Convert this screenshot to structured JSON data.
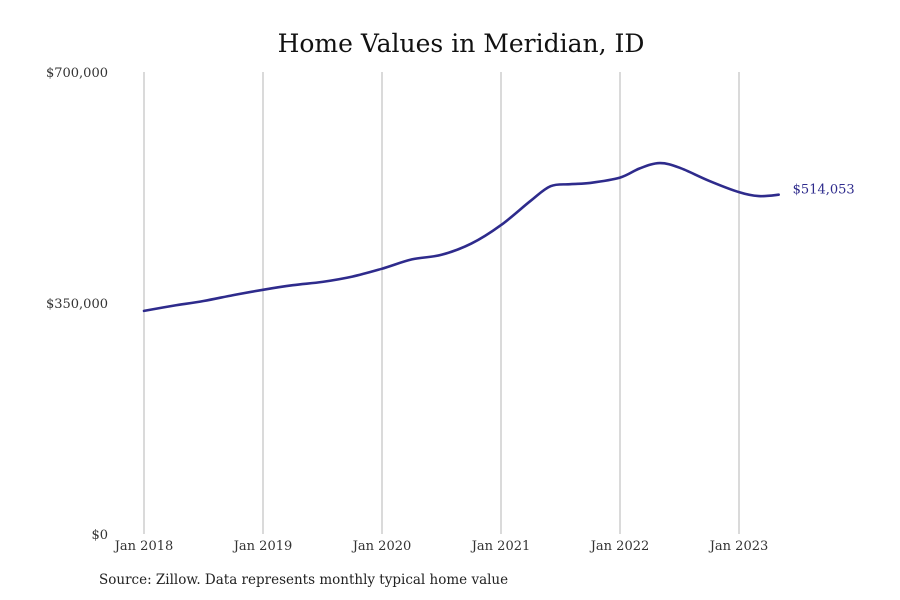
{
  "chart_data": {
    "type": "line",
    "title": "Home Values in Meridian, ID",
    "xlabel": "",
    "ylabel": "",
    "ylim": [
      0,
      700000
    ],
    "yticks": [
      {
        "value": 0,
        "label": "$0"
      },
      {
        "value": 350000,
        "label": "$350,000"
      },
      {
        "value": 700000,
        "label": "$700,000"
      }
    ],
    "xticks": [
      {
        "value": "2018-01",
        "label": "Jan 2018"
      },
      {
        "value": "2019-01",
        "label": "Jan 2019"
      },
      {
        "value": "2020-01",
        "label": "Jan 2020"
      },
      {
        "value": "2021-01",
        "label": "Jan 2021"
      },
      {
        "value": "2022-01",
        "label": "Jan 2022"
      },
      {
        "value": "2023-01",
        "label": "Jan 2023"
      }
    ],
    "grid": "vertical",
    "series": [
      {
        "color": "#2e2b8c",
        "points": [
          {
            "x": "2018-01",
            "y": 338000
          },
          {
            "x": "2018-04",
            "y": 346000
          },
          {
            "x": "2018-07",
            "y": 353000
          },
          {
            "x": "2018-10",
            "y": 362000
          },
          {
            "x": "2019-01",
            "y": 370000
          },
          {
            "x": "2019-04",
            "y": 377000
          },
          {
            "x": "2019-07",
            "y": 382000
          },
          {
            "x": "2019-10",
            "y": 390000
          },
          {
            "x": "2020-01",
            "y": 402000
          },
          {
            "x": "2020-04",
            "y": 416000
          },
          {
            "x": "2020-07",
            "y": 423000
          },
          {
            "x": "2020-10",
            "y": 440000
          },
          {
            "x": "2021-01",
            "y": 468000
          },
          {
            "x": "2021-04",
            "y": 505000
          },
          {
            "x": "2021-06",
            "y": 527000
          },
          {
            "x": "2021-08",
            "y": 530000
          },
          {
            "x": "2021-10",
            "y": 532000
          },
          {
            "x": "2022-01",
            "y": 540000
          },
          {
            "x": "2022-03",
            "y": 554000
          },
          {
            "x": "2022-05",
            "y": 562000
          },
          {
            "x": "2022-07",
            "y": 555000
          },
          {
            "x": "2022-10",
            "y": 535000
          },
          {
            "x": "2023-01",
            "y": 518000
          },
          {
            "x": "2023-03",
            "y": 512000
          },
          {
            "x": "2023-05",
            "y": 514053
          }
        ]
      }
    ],
    "end_label": "$514,053"
  },
  "footer": {
    "source": "Source: Zillow. Data represents monthly typical home value"
  }
}
